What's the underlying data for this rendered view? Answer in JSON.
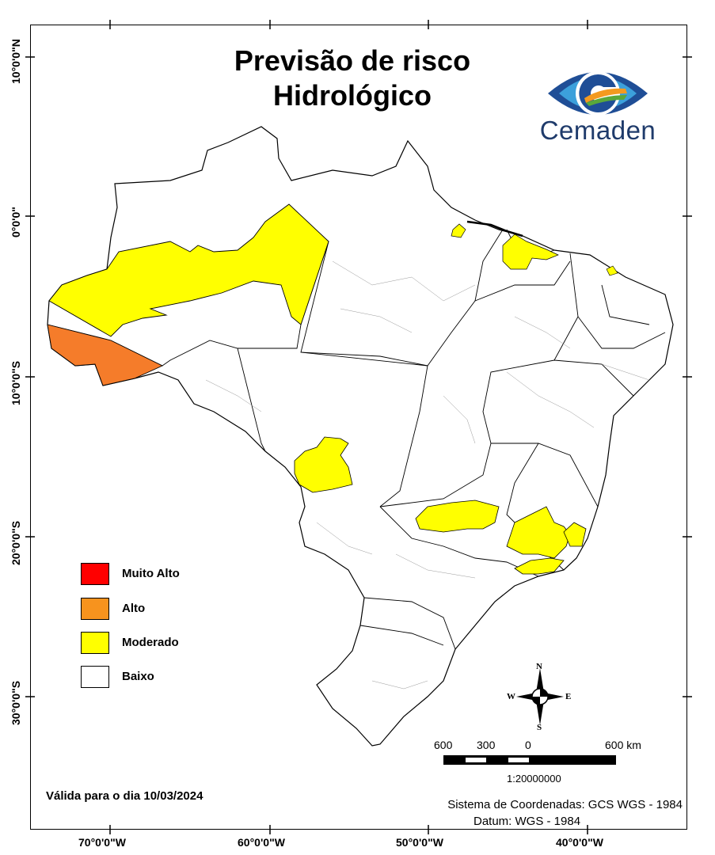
{
  "title_line1": "Previsão de risco",
  "title_line2": "Hidrológico",
  "logo_text": "Cemaden",
  "logo_icon": "cemaden-eye-logo",
  "lat_labels": [
    "10°0'0\"N",
    "0°0'0\"",
    "10°0'0\"S",
    "20°0'0\"S",
    "30°0'0\"S"
  ],
  "lon_labels": [
    "70°0'0\"W",
    "60°0'0\"W",
    "50°0'0\"W",
    "40°0'0\"W"
  ],
  "legend": [
    {
      "label": "Muito Alto",
      "color": "#ff0000"
    },
    {
      "label": "Alto",
      "color": "#f7931e"
    },
    {
      "label": "Moderado",
      "color": "#ffff00"
    },
    {
      "label": "Baixo",
      "color": "#ffffff"
    }
  ],
  "risk_colors": {
    "alto": "#f57c2a",
    "moderado": "#ffff00",
    "baixo": "#ffffff"
  },
  "valid_text": "Válida para o dia 10/03/2024",
  "scale": {
    "labels": [
      "600",
      "300",
      "0",
      "600 km"
    ],
    "ratio": "1:20000000"
  },
  "compass": {
    "n": "N",
    "s": "S",
    "e": "E",
    "w": "W"
  },
  "coord_system": "Sistema de Coordenadas: GCS WGS - 1984",
  "datum": "Datum: WGS - 1984"
}
